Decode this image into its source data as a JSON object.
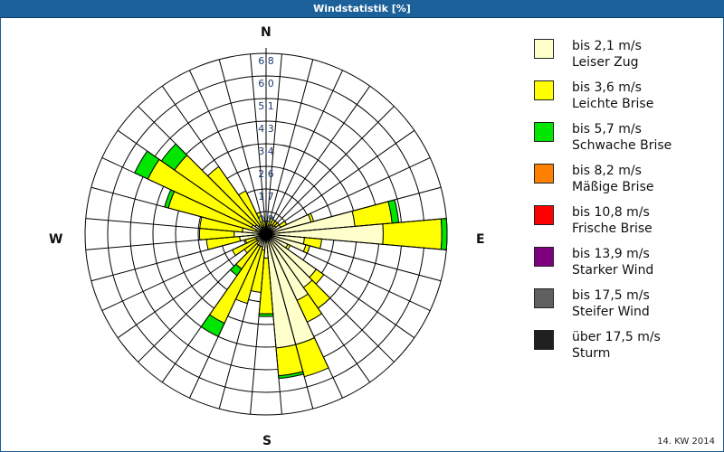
{
  "window": {
    "title": "Windstatistik [%]"
  },
  "cardinals": {
    "n": "N",
    "e": "E",
    "s": "S",
    "w": "W"
  },
  "footer": {
    "week": "14. KW 2014"
  },
  "legend": [
    {
      "range": "bis 2,1 m/s",
      "name": "Leiser Zug",
      "color": "#ffffcc"
    },
    {
      "range": "bis 3,6 m/s",
      "name": "Leichte Brise",
      "color": "#ffff00"
    },
    {
      "range": "bis 5,7 m/s",
      "name": "Schwache Brise",
      "color": "#00e600"
    },
    {
      "range": "bis 8,2 m/s",
      "name": "Mäßige Brise",
      "color": "#ff8000"
    },
    {
      "range": "bis 10,8 m/s",
      "name": "Frische Brise",
      "color": "#ff0000"
    },
    {
      "range": "bis 13,9 m/s",
      "name": "Starker Wind",
      "color": "#800080"
    },
    {
      "range": "bis 17,5 m/s",
      "name": "Steifer Wind",
      "color": "#606060"
    },
    {
      "range": "über 17,5 m/s",
      "name": "Sturm",
      "color": "#202020"
    }
  ],
  "chart_data": {
    "type": "wind-rose",
    "title": "Windstatistik [%]",
    "subtitle": "14. KW 2014",
    "radial_unit": "%",
    "radial_ticks": [
      "0,9",
      "1,7",
      "2,6",
      "3,4",
      "4,3",
      "5,1",
      "6,0",
      "6,8"
    ],
    "radial_max": 6.8,
    "sector_width_deg": 10,
    "series_names": [
      "bis 2,1 m/s",
      "bis 3,6 m/s",
      "bis 5,7 m/s"
    ],
    "series_colors": [
      "#ffffcc",
      "#ffff00",
      "#00e600"
    ],
    "sectors": [
      {
        "dir": 0,
        "values": [
          0.3,
          0.15,
          0
        ]
      },
      {
        "dir": 10,
        "values": [
          0.3,
          0.2,
          0
        ]
      },
      {
        "dir": 20,
        "values": [
          0.35,
          0.3,
          0
        ]
      },
      {
        "dir": 30,
        "values": [
          0.4,
          0.2,
          0
        ]
      },
      {
        "dir": 40,
        "values": [
          0.4,
          0.2,
          0
        ]
      },
      {
        "dir": 50,
        "values": [
          0.45,
          0.15,
          0
        ]
      },
      {
        "dir": 60,
        "values": [
          0.6,
          0.25,
          0
        ]
      },
      {
        "dir": 70,
        "values": [
          1.75,
          0.1,
          0
        ]
      },
      {
        "dir": 80,
        "values": [
          3.35,
          1.4,
          0.25
        ]
      },
      {
        "dir": 90,
        "values": [
          4.4,
          2.2,
          0.2
        ]
      },
      {
        "dir": 100,
        "values": [
          1.45,
          0.65,
          0
        ]
      },
      {
        "dir": 110,
        "values": [
          1.55,
          0.15,
          0
        ]
      },
      {
        "dir": 120,
        "values": [
          0.9,
          0.1,
          0
        ]
      },
      {
        "dir": 130,
        "values": [
          2.3,
          0.35,
          0
        ]
      },
      {
        "dir": 140,
        "values": [
          2.45,
          0.95,
          0
        ]
      },
      {
        "dir": 150,
        "values": [
          2.75,
          0.9,
          0
        ]
      },
      {
        "dir": 160,
        "values": [
          4.3,
          1.25,
          0
        ]
      },
      {
        "dir": 170,
        "values": [
          4.3,
          1.05,
          0.1
        ]
      },
      {
        "dir": 180,
        "values": [
          0.9,
          2.1,
          0.1
        ]
      },
      {
        "dir": 190,
        "values": [
          0.6,
          1.6,
          0
        ]
      },
      {
        "dir": 200,
        "values": [
          0.5,
          2.2,
          0
        ]
      },
      {
        "dir": 210,
        "values": [
          0.5,
          3.2,
          0.55
        ]
      },
      {
        "dir": 220,
        "values": [
          0.5,
          1.1,
          0.3
        ]
      },
      {
        "dir": 230,
        "values": [
          0.4,
          0.6,
          0
        ]
      },
      {
        "dir": 240,
        "values": [
          0.4,
          1.0,
          0
        ]
      },
      {
        "dir": 250,
        "values": [
          0.4,
          0.4,
          0
        ]
      },
      {
        "dir": 260,
        "values": [
          1.0,
          1.25,
          0
        ]
      },
      {
        "dir": 270,
        "values": [
          1.2,
          1.3,
          0
        ]
      },
      {
        "dir": 280,
        "values": [
          0.9,
          1.6,
          0
        ]
      },
      {
        "dir": 290,
        "values": [
          0.4,
          3.4,
          0.15
        ]
      },
      {
        "dir": 300,
        "values": [
          0.6,
          4.3,
          0.55
        ]
      },
      {
        "dir": 310,
        "values": [
          0.5,
          3.7,
          0.6
        ]
      },
      {
        "dir": 320,
        "values": [
          0.4,
          2.7,
          0
        ]
      },
      {
        "dir": 330,
        "values": [
          0.3,
          1.5,
          0
        ]
      },
      {
        "dir": 340,
        "values": [
          0.25,
          0.6,
          0
        ]
      },
      {
        "dir": 350,
        "values": [
          0.2,
          0.3,
          0
        ]
      }
    ]
  }
}
